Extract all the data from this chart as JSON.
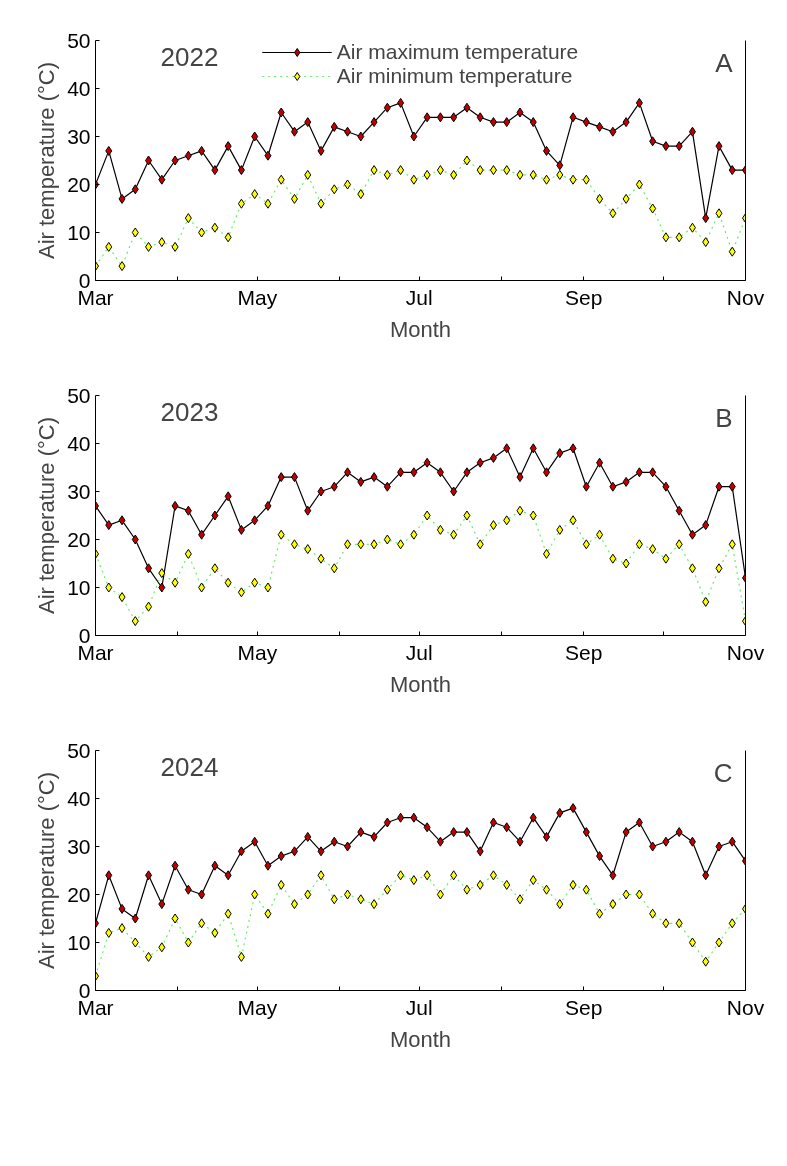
{
  "chart_data": [
    {
      "type": "line",
      "xlabel": "Month",
      "ylabel": "Air temperature (°C)",
      "annotations": [
        "2022",
        "A"
      ],
      "legend": "top",
      "grid": false,
      "marker": "diamond",
      "xlim": [
        "2022-03-01",
        "2022-11-01"
      ],
      "ylim": [
        0,
        50
      ],
      "yticks": [
        0,
        10,
        20,
        30,
        40,
        50
      ],
      "xticks": [
        {
          "value": "2022-03-01",
          "label": "Mar"
        },
        {
          "value": "2022-04-01",
          "label": null
        },
        {
          "value": "2022-05-01",
          "label": "May"
        },
        {
          "value": "2022-06-01",
          "label": null
        },
        {
          "value": "2022-07-01",
          "label": "Jul"
        },
        {
          "value": "2022-08-01",
          "label": null
        },
        {
          "value": "2022-09-01",
          "label": "Sep"
        },
        {
          "value": "2022-10-01",
          "label": null
        },
        {
          "value": "2022-11-01",
          "label": "Nov"
        }
      ],
      "x": [
        "2022-03-01",
        "2022-03-06",
        "2022-03-11",
        "2022-03-16",
        "2022-03-21",
        "2022-03-26",
        "2022-03-31",
        "2022-04-05",
        "2022-04-10",
        "2022-04-15",
        "2022-04-20",
        "2022-04-25",
        "2022-04-30",
        "2022-05-05",
        "2022-05-10",
        "2022-05-15",
        "2022-05-20",
        "2022-05-25",
        "2022-05-30",
        "2022-06-04",
        "2022-06-09",
        "2022-06-14",
        "2022-06-19",
        "2022-06-24",
        "2022-06-29",
        "2022-07-04",
        "2022-07-09",
        "2022-07-14",
        "2022-07-19",
        "2022-07-24",
        "2022-07-29",
        "2022-08-03",
        "2022-08-08",
        "2022-08-13",
        "2022-08-18",
        "2022-08-23",
        "2022-08-28",
        "2022-09-02",
        "2022-09-07",
        "2022-09-12",
        "2022-09-17",
        "2022-09-22",
        "2022-09-27",
        "2022-10-02",
        "2022-10-07",
        "2022-10-12",
        "2022-10-17",
        "2022-10-22",
        "2022-10-27",
        "2022-11-01"
      ],
      "series": [
        {
          "name": "Air maximum temperature",
          "color": "#c00000",
          "line_style": "solid",
          "values": [
            20,
            27,
            17,
            19,
            25,
            21,
            25,
            26,
            27,
            23,
            28,
            23,
            30,
            26,
            35,
            31,
            33,
            27,
            32,
            31,
            30,
            33,
            36,
            37,
            30,
            34,
            34,
            34,
            36,
            34,
            33,
            33,
            35,
            33,
            27,
            24,
            34,
            33,
            32,
            31,
            33,
            37,
            29,
            28,
            28,
            31,
            13,
            28,
            23,
            23
          ]
        },
        {
          "name": "Air minimum temperature",
          "color": "#ffff00",
          "line_style": "dotted",
          "values": [
            3,
            7,
            3,
            10,
            7,
            8,
            7,
            13,
            10,
            11,
            9,
            16,
            18,
            16,
            21,
            17,
            22,
            16,
            19,
            20,
            18,
            23,
            22,
            23,
            21,
            22,
            23,
            22,
            25,
            23,
            23,
            23,
            22,
            22,
            21,
            22,
            21,
            21,
            17,
            14,
            17,
            20,
            15,
            9,
            9,
            11,
            8,
            14,
            6,
            13
          ]
        }
      ]
    },
    {
      "type": "line",
      "xlabel": "Month",
      "ylabel": "Air temperature (°C)",
      "annotations": [
        "2023",
        "B"
      ],
      "grid": false,
      "marker": "diamond",
      "xlim": [
        "2023-03-01",
        "2023-11-01"
      ],
      "ylim": [
        0,
        50
      ],
      "yticks": [
        0,
        10,
        20,
        30,
        40,
        50
      ],
      "xticks": [
        {
          "value": "2023-03-01",
          "label": "Mar"
        },
        {
          "value": "2023-04-01",
          "label": null
        },
        {
          "value": "2023-05-01",
          "label": "May"
        },
        {
          "value": "2023-06-01",
          "label": null
        },
        {
          "value": "2023-07-01",
          "label": "Jul"
        },
        {
          "value": "2023-08-01",
          "label": null
        },
        {
          "value": "2023-09-01",
          "label": "Sep"
        },
        {
          "value": "2023-10-01",
          "label": null
        },
        {
          "value": "2023-11-01",
          "label": "Nov"
        }
      ],
      "x": [
        "2023-03-01",
        "2023-03-06",
        "2023-03-11",
        "2023-03-16",
        "2023-03-21",
        "2023-03-26",
        "2023-03-31",
        "2023-04-05",
        "2023-04-10",
        "2023-04-15",
        "2023-04-20",
        "2023-04-25",
        "2023-04-30",
        "2023-05-05",
        "2023-05-10",
        "2023-05-15",
        "2023-05-20",
        "2023-05-25",
        "2023-05-30",
        "2023-06-04",
        "2023-06-09",
        "2023-06-14",
        "2023-06-19",
        "2023-06-24",
        "2023-06-29",
        "2023-07-04",
        "2023-07-09",
        "2023-07-14",
        "2023-07-19",
        "2023-07-24",
        "2023-07-29",
        "2023-08-03",
        "2023-08-08",
        "2023-08-13",
        "2023-08-18",
        "2023-08-23",
        "2023-08-28",
        "2023-09-02",
        "2023-09-07",
        "2023-09-12",
        "2023-09-17",
        "2023-09-22",
        "2023-09-27",
        "2023-10-02",
        "2023-10-07",
        "2023-10-12",
        "2023-10-17",
        "2023-10-22",
        "2023-10-27",
        "2023-11-01"
      ],
      "series": [
        {
          "color": "#c00000",
          "line_style": "solid",
          "values": [
            27,
            23,
            24,
            20,
            14,
            10,
            27,
            26,
            21,
            25,
            29,
            22,
            24,
            27,
            33,
            33,
            26,
            30,
            31,
            34,
            32,
            33,
            31,
            34,
            34,
            36,
            34,
            30,
            34,
            36,
            37,
            39,
            33,
            39,
            34,
            38,
            39,
            31,
            36,
            31,
            32,
            34,
            34,
            31,
            26,
            21,
            23,
            31,
            31,
            12
          ]
        },
        {
          "color": "#ffff00",
          "line_style": "dotted",
          "values": [
            17,
            10,
            8,
            3,
            6,
            13,
            11,
            17,
            10,
            14,
            11,
            9,
            11,
            10,
            21,
            19,
            18,
            16,
            14,
            19,
            19,
            19,
            20,
            19,
            21,
            25,
            22,
            21,
            25,
            19,
            23,
            24,
            26,
            25,
            17,
            22,
            24,
            19,
            21,
            16,
            15,
            19,
            18,
            16,
            19,
            14,
            7,
            14,
            19,
            3
          ]
        }
      ]
    },
    {
      "type": "line",
      "xlabel": "Month",
      "ylabel": "Air temperature (°C)",
      "annotations": [
        "2024",
        "C"
      ],
      "grid": false,
      "marker": "diamond",
      "xlim": [
        "2024-03-01",
        "2024-11-01"
      ],
      "ylim": [
        0,
        50
      ],
      "yticks": [
        0,
        10,
        20,
        30,
        40,
        50
      ],
      "xticks": [
        {
          "value": "2024-03-01",
          "label": "Mar"
        },
        {
          "value": "2024-04-01",
          "label": null
        },
        {
          "value": "2024-05-01",
          "label": "May"
        },
        {
          "value": "2024-06-01",
          "label": null
        },
        {
          "value": "2024-07-01",
          "label": "Jul"
        },
        {
          "value": "2024-08-01",
          "label": null
        },
        {
          "value": "2024-09-01",
          "label": "Sep"
        },
        {
          "value": "2024-10-01",
          "label": null
        },
        {
          "value": "2024-11-01",
          "label": "Nov"
        }
      ],
      "x": [
        "2024-03-01",
        "2024-03-06",
        "2024-03-11",
        "2024-03-16",
        "2024-03-21",
        "2024-03-26",
        "2024-03-31",
        "2024-04-05",
        "2024-04-10",
        "2024-04-15",
        "2024-04-20",
        "2024-04-25",
        "2024-04-30",
        "2024-05-05",
        "2024-05-10",
        "2024-05-15",
        "2024-05-20",
        "2024-05-25",
        "2024-05-30",
        "2024-06-04",
        "2024-06-09",
        "2024-06-14",
        "2024-06-19",
        "2024-06-24",
        "2024-06-29",
        "2024-07-04",
        "2024-07-09",
        "2024-07-14",
        "2024-07-19",
        "2024-07-24",
        "2024-07-29",
        "2024-08-03",
        "2024-08-08",
        "2024-08-13",
        "2024-08-18",
        "2024-08-23",
        "2024-08-28",
        "2024-09-02",
        "2024-09-07",
        "2024-09-12",
        "2024-09-17",
        "2024-09-22",
        "2024-09-27",
        "2024-10-02",
        "2024-10-07",
        "2024-10-12",
        "2024-10-17",
        "2024-10-22",
        "2024-10-27",
        "2024-11-01"
      ],
      "series": [
        {
          "color": "#c00000",
          "line_style": "solid",
          "values": [
            14,
            24,
            17,
            15,
            24,
            18,
            26,
            21,
            20,
            26,
            24,
            29,
            31,
            26,
            28,
            29,
            32,
            29,
            31,
            30,
            33,
            32,
            35,
            36,
            36,
            34,
            31,
            33,
            33,
            29,
            35,
            34,
            31,
            36,
            32,
            37,
            38,
            33,
            28,
            24,
            33,
            35,
            30,
            31,
            33,
            31,
            24,
            30,
            31,
            27
          ]
        },
        {
          "color": "#ffff00",
          "line_style": "dotted",
          "values": [
            3,
            12,
            13,
            10,
            7,
            9,
            15,
            10,
            14,
            12,
            16,
            7,
            20,
            16,
            22,
            18,
            20,
            24,
            19,
            20,
            19,
            18,
            21,
            24,
            23,
            24,
            20,
            24,
            21,
            22,
            24,
            22,
            19,
            23,
            21,
            18,
            22,
            21,
            16,
            18,
            20,
            20,
            16,
            14,
            14,
            10,
            6,
            10,
            14,
            17
          ]
        }
      ]
    }
  ]
}
